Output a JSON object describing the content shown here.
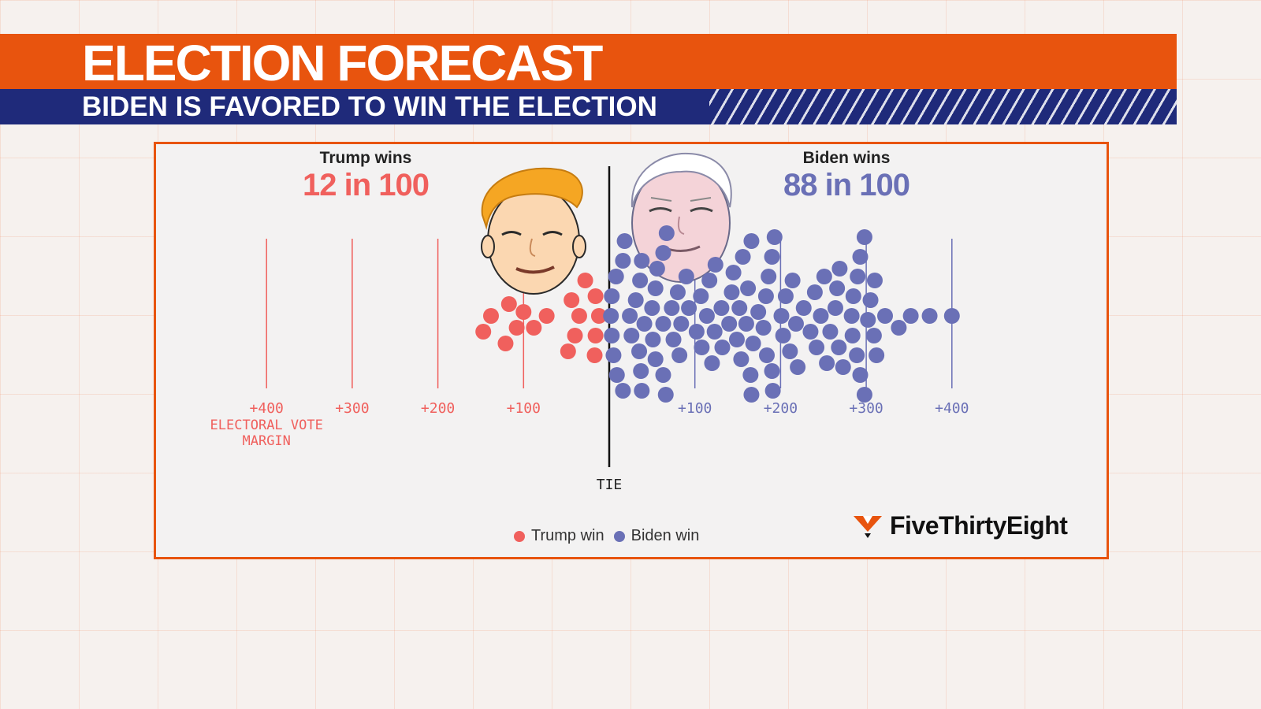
{
  "header": {
    "title": "ELECTION FORECAST",
    "subtitle": "BIDEN IS FAVORED TO WIN THE ELECTION"
  },
  "colors": {
    "accent_orange": "#e8540e",
    "navy": "#1f2a7a",
    "trump": "#f0605d",
    "biden": "#6a70b6"
  },
  "chart_data": {
    "type": "scatter",
    "title": "",
    "trump_label": "Trump wins",
    "trump_value": "12 in 100",
    "biden_label": "Biden wins",
    "biden_value": "88 in 100",
    "xlabel": "ELECTORAL VOTE MARGIN",
    "tie_label": "TIE",
    "trump_ticks": [
      "+400",
      "+300",
      "+200",
      "+100"
    ],
    "biden_ticks": [
      "+100",
      "+200",
      "+300",
      "+400"
    ],
    "xlim": [
      -400,
      400
    ],
    "series": [
      {
        "name": "Trump win",
        "margins": [
          -147,
          -138,
          -121,
          -117,
          -108,
          -100,
          -88,
          -73,
          -48,
          -44,
          -40,
          -35,
          -28,
          -17,
          -16,
          -16,
          -12
        ]
      },
      {
        "name": "Biden win",
        "margins": [
          2,
          3,
          3,
          5,
          8,
          9,
          16,
          16,
          18,
          24,
          26,
          31,
          35,
          36,
          37,
          38,
          38,
          41,
          50,
          51,
          54,
          54,
          56,
          63,
          63,
          63,
          66,
          67,
          73,
          75,
          80,
          82,
          84,
          90,
          93,
          102,
          107,
          108,
          114,
          117,
          120,
          123,
          124,
          131,
          132,
          140,
          143,
          145,
          149,
          152,
          154,
          156,
          160,
          162,
          165,
          166,
          166,
          168,
          174,
          180,
          183,
          184,
          186,
          190,
          190,
          191,
          193,
          201,
          203,
          206,
          211,
          214,
          218,
          220,
          227,
          235,
          240,
          242,
          247,
          251,
          254,
          258,
          264,
          266,
          268,
          269,
          273,
          283,
          284,
          285,
          289,
          290,
          293,
          293,
          298,
          298,
          302,
          305,
          309,
          310,
          312,
          322,
          338,
          352,
          374,
          400
        ]
      }
    ],
    "legend": [
      "Trump win",
      "Biden win"
    ],
    "legend_position": "bottom-center"
  },
  "branding": {
    "logo_text": "FiveThirtyEight"
  }
}
